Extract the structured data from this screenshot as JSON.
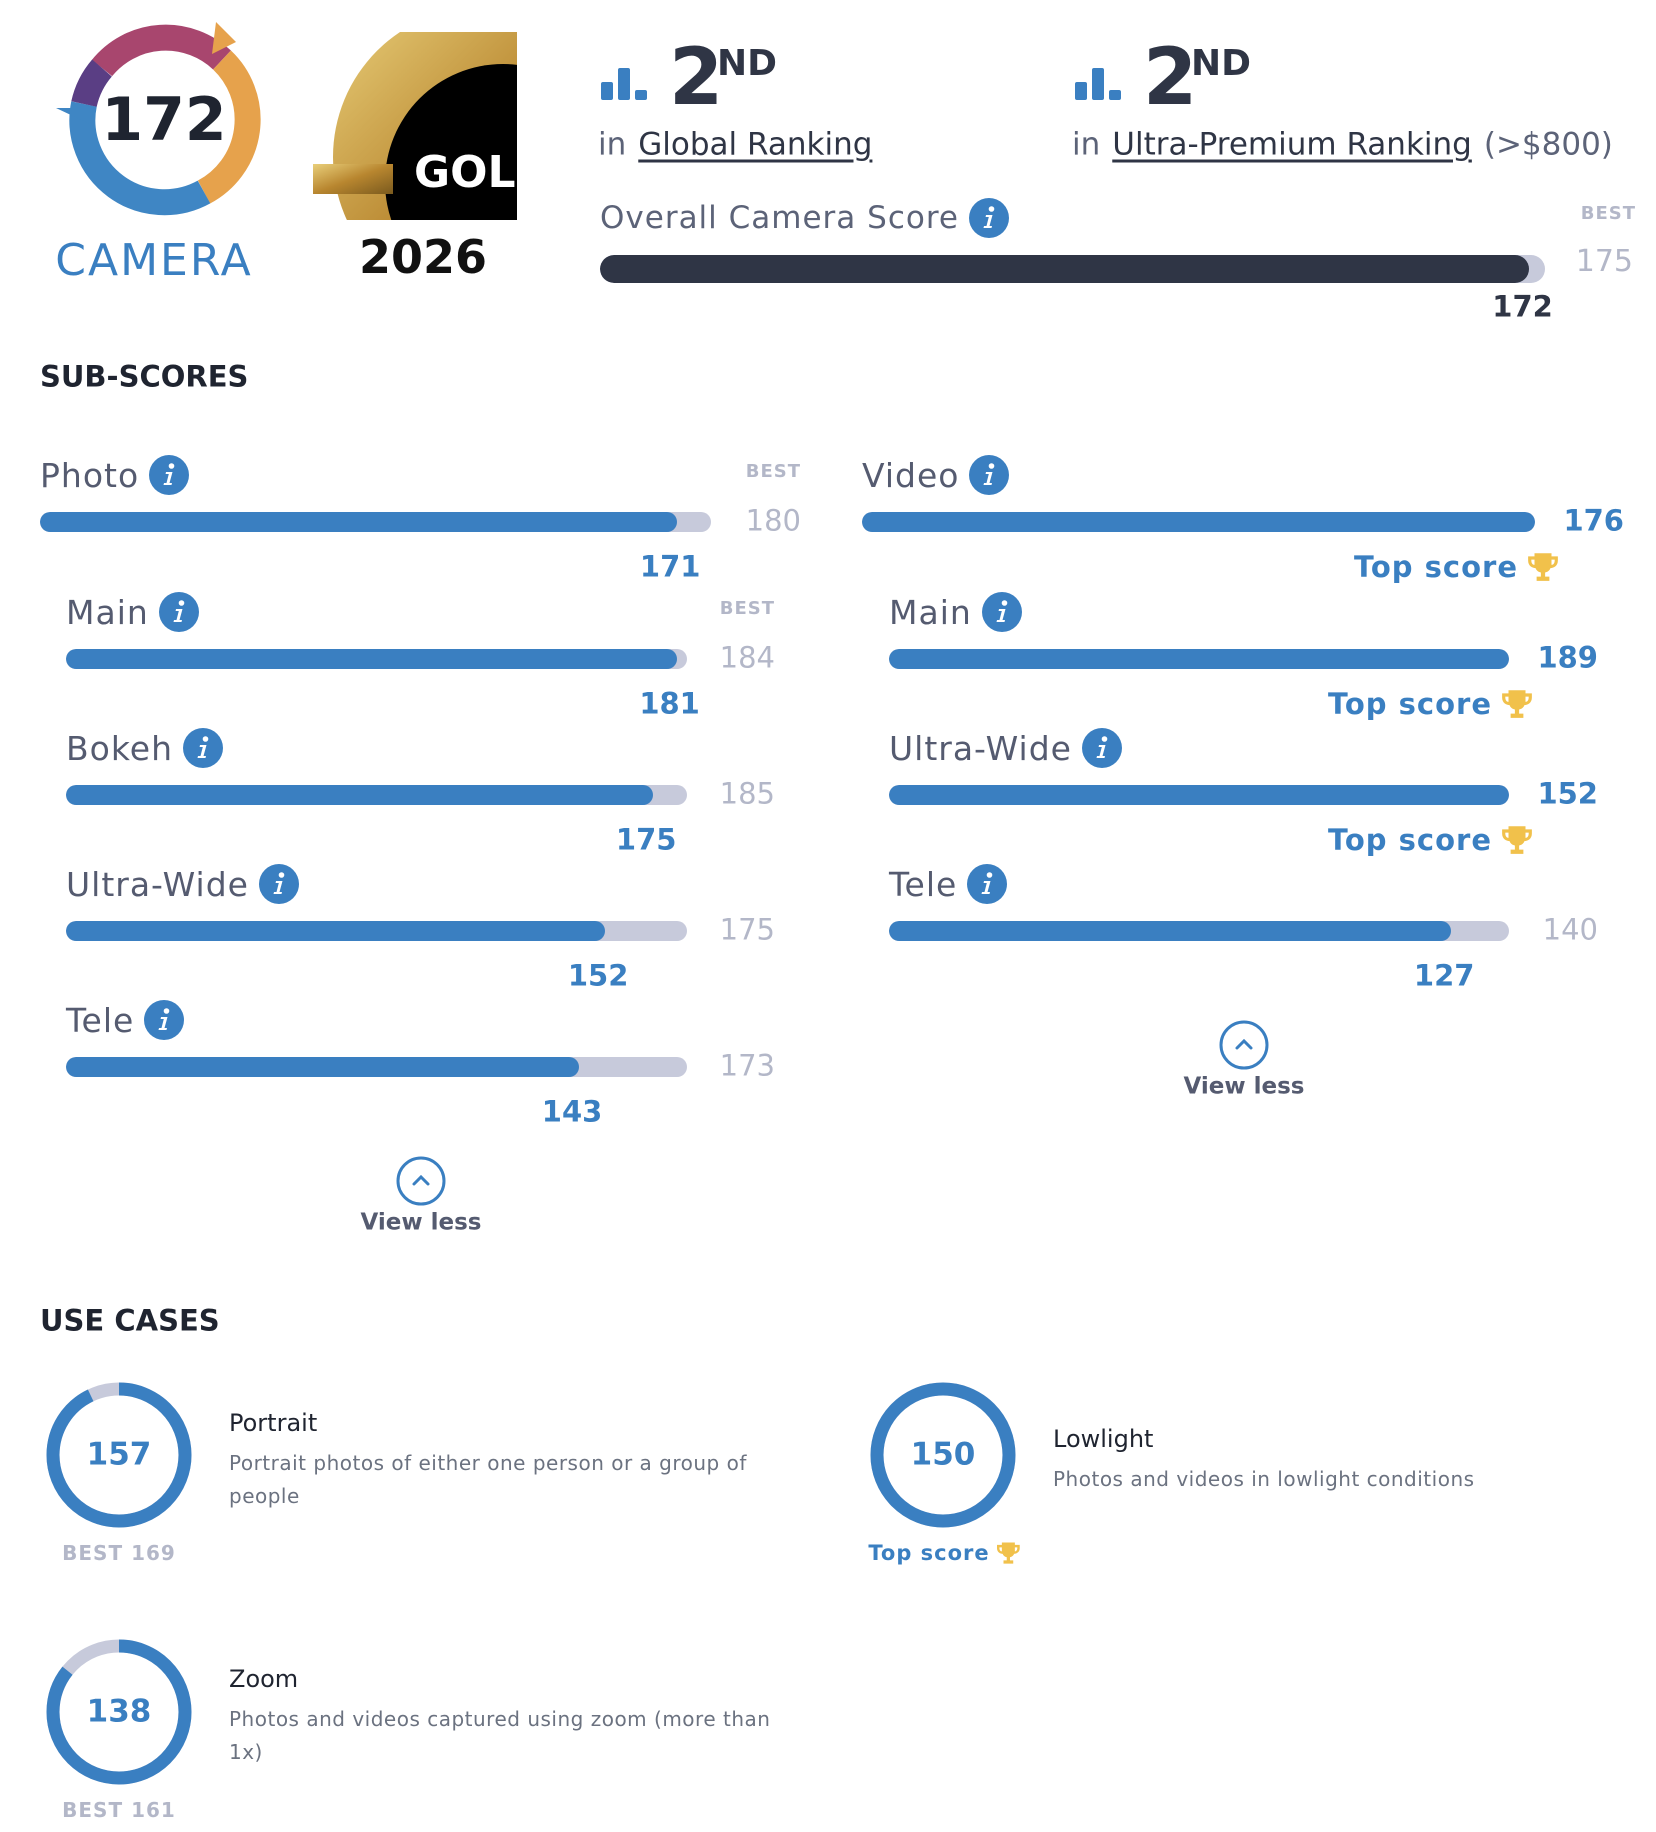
{
  "badge": {
    "score": 172,
    "label": "CAMERA"
  },
  "award": {
    "label": "GOL",
    "year": "2026"
  },
  "rankings": [
    {
      "rank": "2",
      "suffix": "ND",
      "prefix": "in",
      "name": "Global Ranking"
    },
    {
      "rank": "2",
      "suffix": "ND",
      "prefix": "in",
      "name": "Ultra-Premium Ranking",
      "note": "(>$800)"
    }
  ],
  "overall": {
    "label": "Overall Camera Score",
    "best_label": "BEST",
    "best": 175,
    "score": 172
  },
  "sub_scores": {
    "title": "SUB-SCORES",
    "groups": [
      {
        "name": "Photo",
        "score": 171,
        "best_label": "BEST",
        "best": 180,
        "items": [
          {
            "name": "Main",
            "score": 181,
            "best_label": "BEST",
            "best": 184
          },
          {
            "name": "Bokeh",
            "score": 175,
            "best": 185
          },
          {
            "name": "Ultra-Wide",
            "score": 152,
            "best": 175
          },
          {
            "name": "Tele",
            "score": 143,
            "best": 173
          }
        ],
        "toggle": "View less"
      },
      {
        "name": "Video",
        "score": 176,
        "top_label": "Top score",
        "items": [
          {
            "name": "Main",
            "score": 189,
            "top_label": "Top score"
          },
          {
            "name": "Ultra-Wide",
            "score": 152,
            "top_label": "Top score"
          },
          {
            "name": "Tele",
            "score": 127,
            "best": 140
          }
        ],
        "toggle": "View less"
      }
    ]
  },
  "use_cases": {
    "title": "USE CASES",
    "items": [
      {
        "name": "Portrait",
        "description": "Portrait photos of either one person or a group of people",
        "score": 157,
        "best_label": "BEST",
        "best": 169
      },
      {
        "name": "Lowlight",
        "description": "Photos and videos in lowlight conditions",
        "score": 150,
        "top_label": "Top score"
      },
      {
        "name": "Zoom",
        "description": "Photos and videos captured using zoom (more than 1x)",
        "score": 138,
        "best_label": "BEST",
        "best": 161
      }
    ]
  }
}
